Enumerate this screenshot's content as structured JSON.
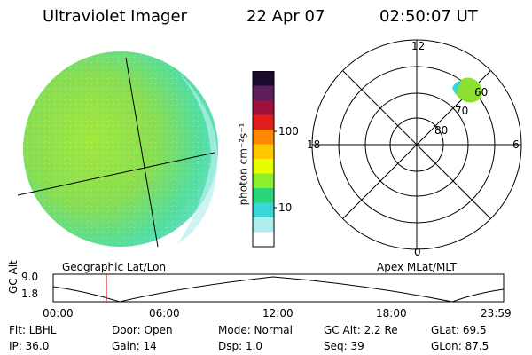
{
  "header": {
    "instrument": "Ultraviolet Imager",
    "date": "22 Apr 07",
    "time": "02:50:07 UT"
  },
  "colorbar": {
    "label": "photon cm⁻²s⁻¹",
    "ticks": [
      "100",
      "10"
    ],
    "colors": [
      "#1a0a2e",
      "#5a1f5a",
      "#a0103c",
      "#e01e1e",
      "#ff8800",
      "#ffc800",
      "#e6ff00",
      "#8cf02a",
      "#2ad67a",
      "#3cd6d6",
      "#b0eeee",
      "#ffffff"
    ]
  },
  "polar_plot": {
    "mlt_labels": {
      "top": "12",
      "bottom": "0",
      "left": "18",
      "right": "6"
    },
    "lat_labels": [
      "80",
      "70",
      "60"
    ]
  },
  "timeline": {
    "axis_label": "GC Alt",
    "left_label": "Geographic Lat/Lon",
    "right_label": "Apex MLat/MLT",
    "y_ticks": [
      "9.0",
      "1.8"
    ],
    "x_ticks": [
      "00:00",
      "06:00",
      "12:00",
      "18:00",
      "23:59"
    ],
    "marker_time": "02:50",
    "marker_color": "#cc0000"
  },
  "info": {
    "flt": "Flt: LBHL",
    "ip": "IP: 36.0",
    "door": "Door: Open",
    "gain": "Gain: 14",
    "mode": "Mode: Normal",
    "dsp": "Dsp:     1.0",
    "gcalt": "GC Alt: 2.2 Re",
    "seq": "Seq: 39",
    "glat": "GLat:   69.5",
    "glon": "GLon:   87.5"
  },
  "colors": {
    "disk_main": "#8fe04a",
    "disk_edge": "#4fdcc8",
    "aurora": "#7ae830"
  }
}
